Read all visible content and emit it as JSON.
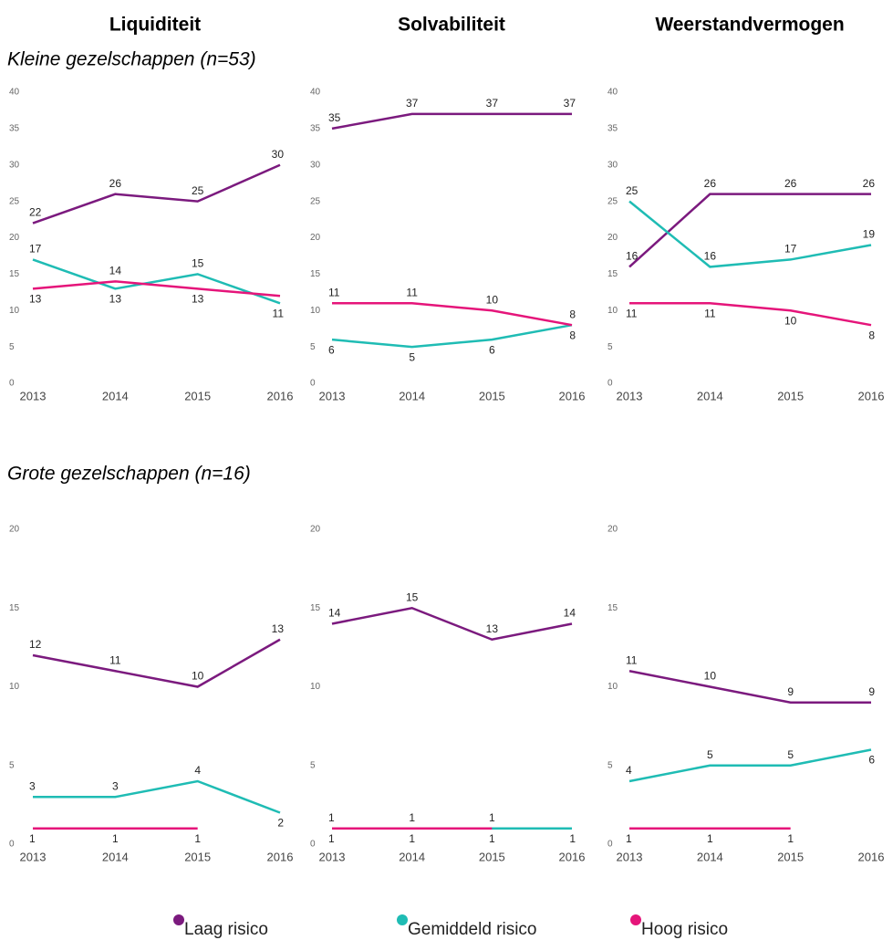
{
  "column_titles": [
    "Liquiditeit",
    "Solvabiliteit",
    "Weerstandvermogen"
  ],
  "row_titles": [
    "Kleine gezelschappen (n=53)",
    "Grote gezelschappen (n=16)"
  ],
  "chart_data": [
    {
      "type": "line",
      "categories": [
        "2013",
        "2014",
        "2015",
        "2016"
      ],
      "ylim": [
        0,
        40
      ],
      "yticks": [
        0,
        5,
        10,
        15,
        20,
        25,
        30,
        35,
        40
      ],
      "series": [
        {
          "name": "Laag risico",
          "color": "#7b1a7e",
          "values": [
            22,
            26,
            25,
            30
          ]
        },
        {
          "name": "Gemiddeld risico",
          "color": "#1fbcb4",
          "values": [
            17,
            13,
            15,
            11
          ]
        },
        {
          "name": "Hoog risico",
          "color": "#e5157a",
          "values": [
            13,
            14,
            13,
            12
          ],
          "value_labels": [
            "13",
            "14",
            "13",
            null
          ]
        }
      ]
    },
    {
      "type": "line",
      "categories": [
        "2013",
        "2014",
        "2015",
        "2016"
      ],
      "ylim": [
        0,
        40
      ],
      "yticks": [
        0,
        5,
        10,
        15,
        20,
        25,
        30,
        35,
        40
      ],
      "series": [
        {
          "name": "Laag risico",
          "color": "#7b1a7e",
          "values": [
            35,
            37,
            37,
            37
          ]
        },
        {
          "name": "Gemiddeld risico",
          "color": "#1fbcb4",
          "values": [
            6,
            5,
            6,
            8
          ]
        },
        {
          "name": "Hoog risico",
          "color": "#e5157a",
          "values": [
            11,
            11,
            10,
            8
          ]
        }
      ]
    },
    {
      "type": "line",
      "categories": [
        "2013",
        "2014",
        "2015",
        "2016"
      ],
      "ylim": [
        0,
        40
      ],
      "yticks": [
        0,
        5,
        10,
        15,
        20,
        25,
        30,
        35,
        40
      ],
      "series": [
        {
          "name": "Laag risico",
          "color": "#7b1a7e",
          "values": [
            16,
            26,
            26,
            26
          ]
        },
        {
          "name": "Gemiddeld risico",
          "color": "#1fbcb4",
          "values": [
            25,
            16,
            17,
            19
          ]
        },
        {
          "name": "Hoog risico",
          "color": "#e5157a",
          "values": [
            11,
            11,
            10,
            8
          ]
        }
      ]
    },
    {
      "type": "line",
      "categories": [
        "2013",
        "2014",
        "2015",
        "2016"
      ],
      "ylim": [
        0,
        20
      ],
      "yticks": [
        0,
        5,
        10,
        15,
        20
      ],
      "series": [
        {
          "name": "Laag risico",
          "color": "#7b1a7e",
          "values": [
            12,
            11,
            10,
            13
          ]
        },
        {
          "name": "Gemiddeld risico",
          "color": "#1fbcb4",
          "values": [
            3,
            3,
            4,
            2
          ]
        },
        {
          "name": "Hoog risico",
          "color": "#e5157a",
          "values": [
            1,
            1,
            1,
            null
          ]
        }
      ]
    },
    {
      "type": "line",
      "categories": [
        "2013",
        "2014",
        "2015",
        "2016"
      ],
      "ylim": [
        0,
        20
      ],
      "yticks": [
        0,
        5,
        10,
        15,
        20
      ],
      "series": [
        {
          "name": "Laag risico",
          "color": "#7b1a7e",
          "values": [
            14,
            15,
            13,
            14
          ]
        },
        {
          "name": "Gemiddeld risico",
          "color": "#1fbcb4",
          "values": [
            1,
            1,
            1,
            1
          ]
        },
        {
          "name": "Hoog risico",
          "color": "#e5157a",
          "values": [
            1,
            1,
            1,
            null
          ]
        }
      ]
    },
    {
      "type": "line",
      "categories": [
        "2013",
        "2014",
        "2015",
        "2016"
      ],
      "ylim": [
        0,
        20
      ],
      "yticks": [
        0,
        5,
        10,
        15,
        20
      ],
      "series": [
        {
          "name": "Laag risico",
          "color": "#7b1a7e",
          "values": [
            11,
            10,
            9,
            9
          ]
        },
        {
          "name": "Gemiddeld risico",
          "color": "#1fbcb4",
          "values": [
            4,
            5,
            5,
            6
          ]
        },
        {
          "name": "Hoog risico",
          "color": "#e5157a",
          "values": [
            1,
            1,
            1,
            null
          ]
        }
      ]
    }
  ]
}
